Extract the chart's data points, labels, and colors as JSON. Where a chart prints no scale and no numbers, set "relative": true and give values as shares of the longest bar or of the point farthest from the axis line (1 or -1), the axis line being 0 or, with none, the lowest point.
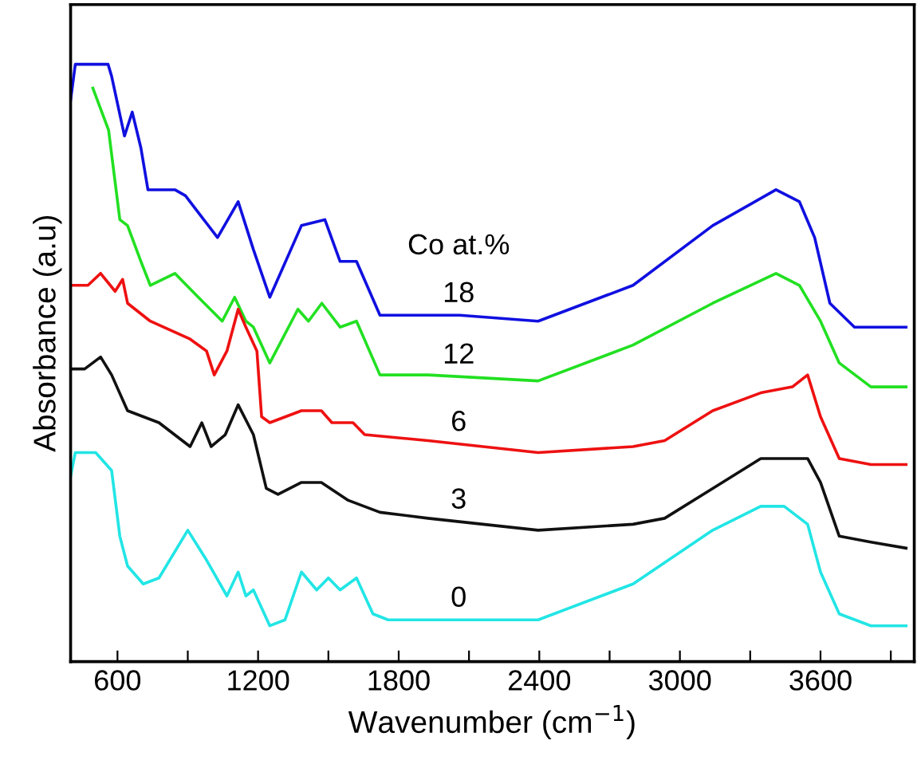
{
  "chart_data": {
    "type": "line",
    "relative": true,
    "xlabel": "Wavenumber (cm$^{−1}$)",
    "ylabel": "Absorbance (a.u)",
    "legend_title": "Co at.%",
    "xlim": [
      400,
      4000
    ],
    "xticks": [
      600,
      {
        "value": 900,
        "label": null
      },
      1200,
      {
        "value": 1500,
        "label": null
      },
      1800,
      {
        "value": 2100,
        "label": null
      },
      2400,
      {
        "value": 2700,
        "label": null
      },
      3000,
      {
        "value": 3300,
        "label": null
      },
      3600,
      {
        "value": 3900,
        "label": null
      }
    ],
    "grid": false,
    "legend": false,
    "line_style": "solid",
    "marker": "none",
    "series": [
      {
        "name": "18",
        "color": "#1010e0",
        "x": [
          400,
          420,
          560,
          575,
          630,
          663,
          700,
          730,
          845,
          890,
          1027,
          1115,
          1180,
          1250,
          1385,
          1485,
          1550,
          1620,
          1720,
          1855,
          2060,
          2395,
          2800,
          3140,
          3410,
          3510,
          3575,
          3640,
          3745,
          3965
        ],
        "values": [
          0.94,
          1.0,
          1.0,
          0.98,
          0.88,
          0.92,
          0.86,
          0.79,
          0.79,
          0.78,
          0.71,
          0.77,
          0.69,
          0.61,
          0.73,
          0.74,
          0.67,
          0.67,
          0.58,
          0.58,
          0.58,
          0.57,
          0.63,
          0.73,
          0.79,
          0.77,
          0.71,
          0.6,
          0.56,
          0.56
        ]
      },
      {
        "name": "12",
        "color": "#22e022",
        "x": [
          495,
          562,
          610,
          643,
          700,
          740,
          845,
          945,
          1047,
          1100,
          1148,
          1180,
          1250,
          1370,
          1415,
          1472,
          1550,
          1620,
          1720,
          1925,
          2395,
          2800,
          3140,
          3410,
          3510,
          3600,
          3680,
          3815,
          3965
        ],
        "values": [
          0.96,
          0.89,
          0.74,
          0.73,
          0.67,
          0.63,
          0.65,
          0.61,
          0.57,
          0.61,
          0.57,
          0.56,
          0.5,
          0.59,
          0.57,
          0.6,
          0.56,
          0.57,
          0.48,
          0.48,
          0.47,
          0.53,
          0.6,
          0.65,
          0.63,
          0.57,
          0.5,
          0.46,
          0.46
        ]
      },
      {
        "name": "6",
        "color": "#ee1111",
        "x": [
          400,
          474,
          528,
          590,
          622,
          643,
          740,
          910,
          980,
          1013,
          1067,
          1115,
          1148,
          1195,
          1215,
          1250,
          1385,
          1470,
          1515,
          1605,
          1655,
          1925,
          2395,
          2800,
          2935,
          3140,
          3345,
          3480,
          3545,
          3600,
          3680,
          3815,
          3965
        ],
        "values": [
          0.63,
          0.63,
          0.65,
          0.62,
          0.64,
          0.6,
          0.57,
          0.54,
          0.52,
          0.48,
          0.52,
          0.59,
          0.56,
          0.52,
          0.41,
          0.4,
          0.42,
          0.42,
          0.4,
          0.4,
          0.38,
          0.37,
          0.35,
          0.36,
          0.37,
          0.42,
          0.45,
          0.46,
          0.48,
          0.41,
          0.34,
          0.33,
          0.33
        ]
      },
      {
        "name": "3",
        "color": "#111111",
        "x": [
          400,
          460,
          528,
          575,
          643,
          777,
          910,
          960,
          1000,
          1060,
          1115,
          1180,
          1235,
          1285,
          1385,
          1470,
          1585,
          1720,
          1925,
          2395,
          2800,
          2935,
          3140,
          3345,
          3480,
          3545,
          3600,
          3680,
          3815,
          3965
        ],
        "values": [
          0.49,
          0.49,
          0.51,
          0.48,
          0.42,
          0.4,
          0.36,
          0.4,
          0.36,
          0.38,
          0.43,
          0.38,
          0.29,
          0.28,
          0.3,
          0.3,
          0.27,
          0.25,
          0.24,
          0.22,
          0.23,
          0.24,
          0.29,
          0.34,
          0.34,
          0.34,
          0.3,
          0.21,
          0.2,
          0.19
        ]
      },
      {
        "name": "0",
        "color": "#22e5e5",
        "x": [
          400,
          420,
          507,
          575,
          610,
          643,
          710,
          777,
          900,
          980,
          1067,
          1115,
          1148,
          1180,
          1250,
          1315,
          1385,
          1450,
          1500,
          1550,
          1620,
          1690,
          1755,
          1925,
          2125,
          2395,
          2800,
          3140,
          3345,
          3445,
          3545,
          3600,
          3680,
          3815,
          3965
        ],
        "values": [
          0.31,
          0.35,
          0.35,
          0.32,
          0.21,
          0.16,
          0.13,
          0.14,
          0.22,
          0.17,
          0.11,
          0.15,
          0.11,
          0.12,
          0.06,
          0.07,
          0.15,
          0.12,
          0.14,
          0.12,
          0.14,
          0.08,
          0.07,
          0.07,
          0.07,
          0.07,
          0.13,
          0.22,
          0.26,
          0.26,
          0.23,
          0.15,
          0.08,
          0.06,
          0.06
        ]
      }
    ]
  }
}
